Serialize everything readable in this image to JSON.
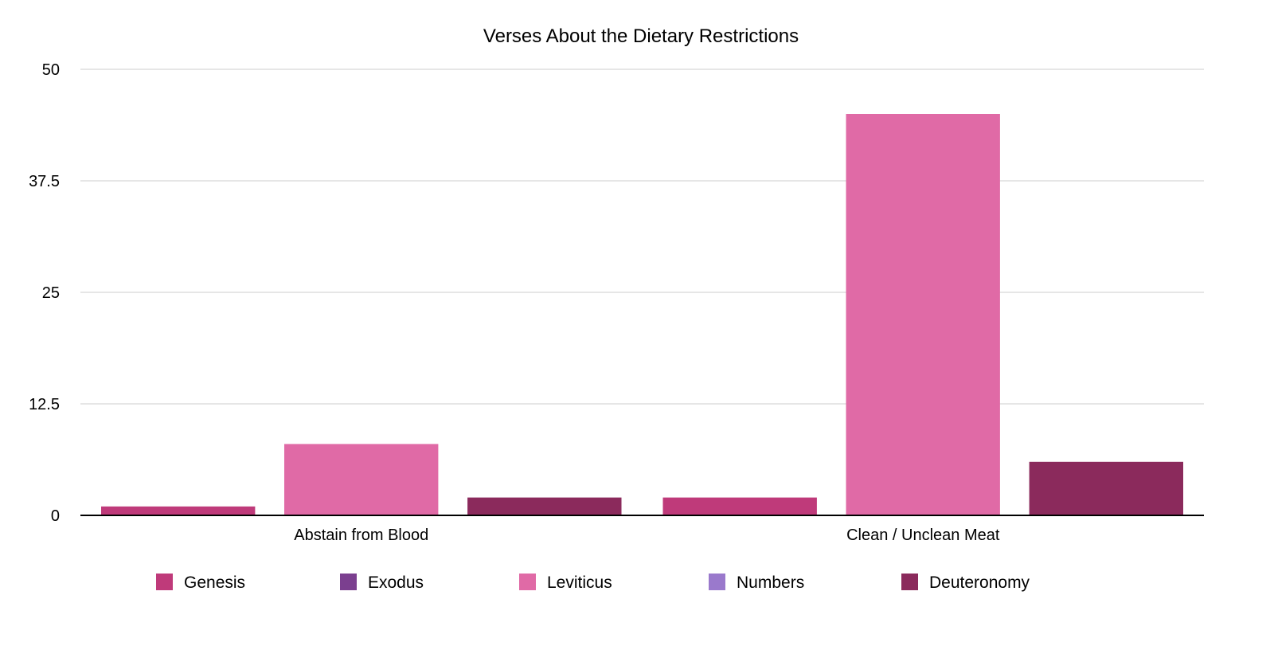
{
  "chart_data": {
    "type": "bar",
    "title": "Verses About the Dietary Restrictions",
    "xlabel": "",
    "ylabel": "",
    "categories": [
      "Abstain from Blood",
      "Clean / Unclean Meat"
    ],
    "series": [
      {
        "name": "Genesis",
        "color": "#bf3a7a",
        "values": [
          1,
          2
        ]
      },
      {
        "name": "Exodus",
        "color": "#7b3f8f",
        "values": [
          0,
          0
        ]
      },
      {
        "name": "Leviticus",
        "color": "#e06aa6",
        "values": [
          8,
          45
        ]
      },
      {
        "name": "Numbers",
        "color": "#9a79cc",
        "values": [
          0,
          0
        ]
      },
      {
        "name": "Deuteronomy",
        "color": "#8b2a5c",
        "values": [
          2,
          6
        ]
      }
    ],
    "ylim": [
      0,
      50
    ],
    "yticks": [
      0,
      12.5,
      25,
      37.5,
      50
    ],
    "ytick_labels": [
      "0",
      "12.5",
      "25",
      "37.5",
      "50"
    ],
    "grid": true,
    "legend_position": "bottom"
  }
}
